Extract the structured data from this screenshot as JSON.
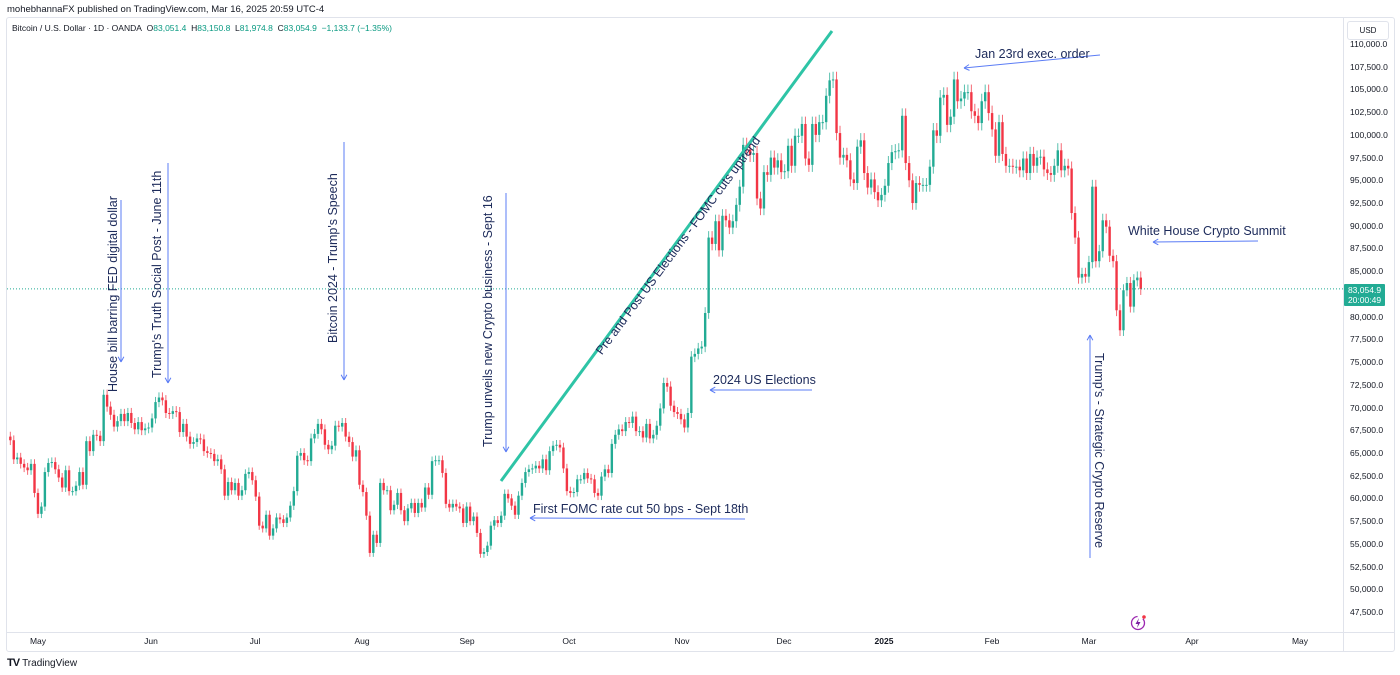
{
  "publisher_line": "mohebhannaFX published on TradingView.com, Mar 16, 2025 20:59 UTC-4",
  "legend": {
    "symbol": "Bitcoin / U.S. Dollar · 1D · OANDA",
    "open_label": "O",
    "open": "83,051.4",
    "high_label": "H",
    "high": "83,150.8",
    "low_label": "L",
    "low": "81,974.8",
    "close_label": "C",
    "close": "83,054.9",
    "change": "−1,133.7 (−1.35%)"
  },
  "currency": "USD",
  "last_price": {
    "value": "83,054.9",
    "countdown": "20:00:49"
  },
  "footer_logo": "TradingView",
  "colors": {
    "up": "#22ab94",
    "down": "#f23645",
    "trendline": "#2ec4a6",
    "arrow": "#5b7cf5",
    "note_text": "#1c2a5a"
  },
  "chart_data": {
    "type": "candlestick",
    "interval": "1D",
    "first_date": "2024-04-21",
    "last_close": 83054.9,
    "ylim": [
      45300,
      112860
    ],
    "y_ticks": [
      "110,000.0",
      "107,500.0",
      "105,000.0",
      "102,500.0",
      "100,000.0",
      "97,500.0",
      "95,000.0",
      "92,500.0",
      "90,000.0",
      "87,500.0",
      "85,000.0",
      "80,000.0",
      "77,500.0",
      "75,000.0",
      "72,500.0",
      "70,000.0",
      "67,500.0",
      "65,000.0",
      "62,500.0",
      "60,000.0",
      "57,500.0",
      "55,000.0",
      "52,500.0",
      "50,000.0",
      "47,500.0"
    ],
    "x_ticks": [
      "May",
      "Jun",
      "Jul",
      "Aug",
      "Sep",
      "Oct",
      "Nov",
      "Dec",
      "2025",
      "Feb",
      "Mar",
      "Apr",
      "May"
    ],
    "closes_thousands": [
      64.9,
      66.8,
      66.4,
      64.3,
      64.5,
      63.8,
      63.4,
      63.1,
      63.8,
      60.6,
      58.3,
      59.1,
      62.9,
      63.9,
      64.0,
      63.2,
      62.3,
      61.2,
      63.1,
      60.8,
      60.8,
      61.4,
      62.9,
      61.5,
      66.3,
      65.2,
      67.0,
      66.9,
      66.3,
      71.4,
      70.1,
      69.2,
      67.9,
      68.5,
      69.3,
      68.5,
      69.4,
      68.3,
      67.6,
      68.4,
      67.5,
      67.7,
      67.8,
      68.8,
      70.6,
      71.1,
      70.8,
      69.4,
      69.3,
      69.6,
      69.5,
      67.3,
      68.2,
      66.8,
      66.0,
      66.2,
      66.6,
      66.5,
      65.2,
      65.0,
      64.9,
      64.1,
      64.3,
      63.2,
      60.3,
      61.8,
      60.9,
      61.7,
      60.3,
      60.9,
      62.7,
      62.9,
      62.0,
      60.2,
      57.0,
      56.7,
      58.2,
      55.9,
      56.7,
      57.9,
      57.7,
      57.3,
      57.9,
      59.2,
      60.8,
      64.7,
      65.0,
      64.2,
      64.1,
      66.6,
      67.1,
      68.2,
      67.6,
      65.9,
      65.4,
      65.8,
      68.0,
      67.9,
      68.3,
      66.8,
      66.2,
      64.6,
      65.3,
      61.5,
      60.7,
      58.1,
      54.0,
      56.0,
      55.1,
      61.7,
      60.9,
      60.9,
      58.7,
      59.3,
      60.6,
      58.7,
      57.5,
      58.9,
      59.5,
      58.4,
      59.5,
      59.0,
      61.2,
      60.4,
      64.1,
      64.2,
      64.2,
      62.8,
      59.4,
      59.0,
      59.4,
      59.1,
      58.9,
      57.3,
      59.1,
      57.5,
      58.0,
      56.2,
      53.9,
      54.1,
      54.8,
      57.0,
      57.6,
      57.3,
      58.1,
      60.5,
      60.0,
      59.2,
      58.2,
      60.3,
      61.7,
      62.9,
      63.2,
      63.3,
      63.6,
      63.3,
      64.3,
      63.1,
      65.2,
      65.8,
      65.9,
      65.6,
      63.3,
      60.8,
      60.6,
      60.7,
      62.1,
      62.1,
      62.8,
      62.2,
      62.1,
      60.6,
      60.3,
      62.4,
      63.2,
      62.8,
      66.0,
      67.0,
      67.6,
      67.4,
      68.4,
      68.3,
      69.0,
      67.4,
      67.4,
      66.7,
      68.2,
      66.6,
      67.0,
      68.0,
      69.9,
      72.7,
      72.3,
      70.2,
      69.5,
      69.3,
      68.7,
      67.8,
      69.4,
      75.6,
      75.9,
      76.5,
      76.7,
      80.4,
      88.7,
      88.0,
      90.5,
      87.3,
      91.1,
      90.6,
      89.8,
      90.5,
      92.3,
      94.3,
      98.9,
      98.4,
      97.8,
      98.0,
      93.0,
      91.9,
      95.9,
      95.6,
      97.5,
      96.4,
      97.2,
      95.9,
      96.0,
      98.8,
      96.6,
      99.9,
      99.9,
      101.2,
      97.4,
      96.7,
      101.2,
      100.0,
      101.4,
      101.4,
      104.3,
      106.0,
      106.1,
      100.2,
      97.5,
      97.8,
      97.2,
      95.1,
      94.7,
      98.7,
      99.4,
      95.8,
      94.2,
      95.1,
      93.7,
      92.8,
      93.4,
      94.4,
      96.9,
      98.1,
      98.2,
      98.3,
      102.1,
      96.9,
      95.0,
      92.5,
      94.7,
      94.5,
      94.5,
      94.5,
      96.5,
      100.5,
      99.9,
      104.1,
      104.4,
      101.1,
      102.0,
      106.1,
      103.7,
      104.0,
      104.7,
      104.7,
      102.6,
      102.1,
      101.3,
      103.7,
      104.7,
      102.4,
      100.6,
      97.7,
      101.4,
      97.9,
      96.6,
      96.6,
      96.5,
      96.5,
      96.1,
      97.4,
      95.8,
      97.9,
      96.6,
      97.5,
      97.6,
      96.2,
      95.8,
      95.6,
      96.6,
      98.3,
      96.1,
      96.6,
      96.3,
      91.4,
      88.7,
      84.3,
      84.7,
      84.4,
      86.0,
      94.3,
      86.1,
      87.2,
      90.6,
      89.9,
      86.7,
      86.1,
      80.7,
      78.5,
      82.9,
      83.7,
      81.1,
      84.0,
      84.3,
      83.05
    ],
    "annotations": [
      "House bill barring FED digital dollar",
      "Trump's Truth Social Post - June 11th",
      "Bitcoin 2024 - Trump's Speech",
      "Trump unveils new Crypto business - Sept 16",
      "Pre and Post US Elections - FOMC cuts uptrend",
      "Jan 23rd exec. order",
      "White House Crypto Summit",
      "Trump's - Strategic Crypto Reserve",
      "2024 US Elections",
      "First FOMC rate cut 50 bps - Sept 18th"
    ]
  }
}
